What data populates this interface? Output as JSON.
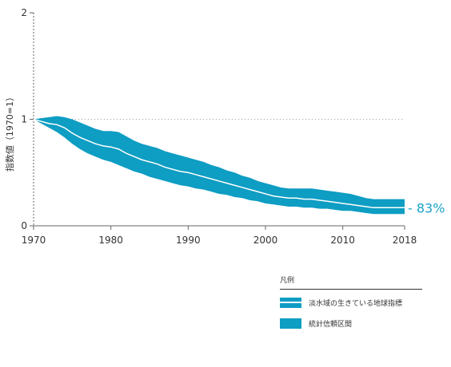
{
  "chart_data": {
    "type": "area",
    "title": "",
    "xlabel": "",
    "ylabel": "指数値（1970=1）",
    "xlim": [
      1970,
      2018
    ],
    "ylim": [
      0,
      2
    ],
    "x_ticks": [
      "1970",
      "1980",
      "1990",
      "2000",
      "2010",
      "2018"
    ],
    "y_ticks": [
      "0",
      "1",
      "2"
    ],
    "reference_line": 1,
    "series": [
      {
        "name": "淡水域の生きている地球指標",
        "x": [
          1970,
          1971,
          1972,
          1973,
          1974,
          1975,
          1976,
          1977,
          1978,
          1979,
          1980,
          1981,
          1982,
          1983,
          1984,
          1985,
          1986,
          1987,
          1988,
          1989,
          1990,
          1991,
          1992,
          1993,
          1994,
          1995,
          1996,
          1997,
          1998,
          1999,
          2000,
          2001,
          2002,
          2003,
          2004,
          2005,
          2006,
          2007,
          2008,
          2009,
          2010,
          2011,
          2012,
          2013,
          2014,
          2015,
          2016,
          2017,
          2018
        ],
        "values": [
          1.0,
          0.98,
          0.96,
          0.95,
          0.92,
          0.87,
          0.83,
          0.8,
          0.77,
          0.75,
          0.74,
          0.72,
          0.68,
          0.65,
          0.62,
          0.6,
          0.58,
          0.55,
          0.53,
          0.51,
          0.5,
          0.48,
          0.46,
          0.44,
          0.42,
          0.4,
          0.38,
          0.36,
          0.34,
          0.32,
          0.3,
          0.28,
          0.27,
          0.26,
          0.26,
          0.25,
          0.25,
          0.24,
          0.23,
          0.22,
          0.21,
          0.2,
          0.19,
          0.18,
          0.17,
          0.17,
          0.17,
          0.17,
          0.17
        ],
        "upper": [
          1.0,
          1.01,
          1.02,
          1.03,
          1.02,
          1.0,
          0.97,
          0.94,
          0.91,
          0.89,
          0.89,
          0.88,
          0.84,
          0.8,
          0.77,
          0.75,
          0.73,
          0.7,
          0.68,
          0.66,
          0.64,
          0.62,
          0.6,
          0.57,
          0.55,
          0.52,
          0.5,
          0.47,
          0.45,
          0.42,
          0.4,
          0.38,
          0.36,
          0.35,
          0.35,
          0.35,
          0.35,
          0.34,
          0.33,
          0.32,
          0.31,
          0.3,
          0.28,
          0.26,
          0.25,
          0.25,
          0.25,
          0.25,
          0.25
        ],
        "lower": [
          1.0,
          0.96,
          0.92,
          0.88,
          0.83,
          0.77,
          0.72,
          0.68,
          0.65,
          0.62,
          0.6,
          0.57,
          0.54,
          0.51,
          0.49,
          0.46,
          0.44,
          0.42,
          0.4,
          0.38,
          0.37,
          0.35,
          0.34,
          0.32,
          0.3,
          0.29,
          0.27,
          0.26,
          0.24,
          0.23,
          0.21,
          0.2,
          0.19,
          0.18,
          0.18,
          0.17,
          0.17,
          0.16,
          0.16,
          0.15,
          0.14,
          0.14,
          0.13,
          0.12,
          0.11,
          0.11,
          0.11,
          0.11,
          0.11
        ]
      }
    ],
    "end_label": "- 83%",
    "legend": {
      "title": "凡例",
      "placement": "bottom-right",
      "items": [
        {
          "label": "淡水域の生きている地球指標",
          "kind": "line"
        },
        {
          "label": "統計信頼区間",
          "kind": "band"
        }
      ]
    },
    "grid": false
  },
  "colors": {
    "band": "#0e9dc3",
    "line": "#ffffff",
    "end_label": "#1aa3c9",
    "axis": "#666666",
    "reference": "#9a9a9a"
  }
}
